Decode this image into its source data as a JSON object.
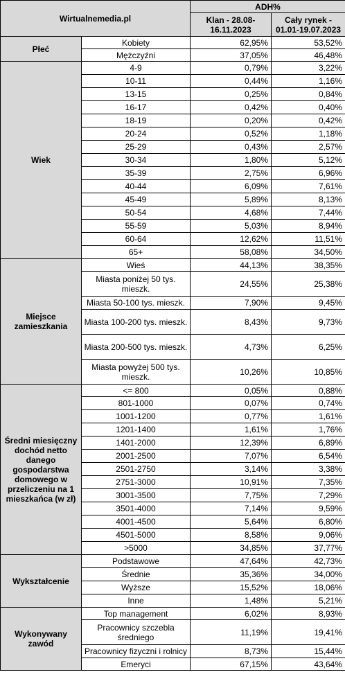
{
  "header": {
    "brand": "Wirtualnemedia.pl",
    "metric": "ADH%",
    "col1": "Klan - 28.08-16.11.2023",
    "col2": "Cały rynek - 01.01-19.07.2023"
  },
  "groups": [
    {
      "category": "Płeć",
      "rows": [
        {
          "label": "Kobiety",
          "v1": "62,95%",
          "v2": "53,52%"
        },
        {
          "label": "Mężczyźni",
          "v1": "37,05%",
          "v2": "46,48%"
        }
      ]
    },
    {
      "category": "Wiek",
      "rows": [
        {
          "label": "4-9",
          "v1": "0,79%",
          "v2": "3,22%"
        },
        {
          "label": "10-11",
          "v1": "0,44%",
          "v2": "1,16%"
        },
        {
          "label": "13-15",
          "v1": "0,25%",
          "v2": "0,84%"
        },
        {
          "label": "16-17",
          "v1": "0,42%",
          "v2": "0,40%"
        },
        {
          "label": "18-19",
          "v1": "0,20%",
          "v2": "0,42%"
        },
        {
          "label": "20-24",
          "v1": "0,52%",
          "v2": "1,18%"
        },
        {
          "label": "25-29",
          "v1": "0,43%",
          "v2": "2,57%"
        },
        {
          "label": "30-34",
          "v1": "1,80%",
          "v2": "5,12%"
        },
        {
          "label": "35-39",
          "v1": "2,75%",
          "v2": "6,96%"
        },
        {
          "label": "40-44",
          "v1": "6,09%",
          "v2": "7,61%"
        },
        {
          "label": "45-49",
          "v1": "5,89%",
          "v2": "8,13%"
        },
        {
          "label": "50-54",
          "v1": "4,68%",
          "v2": "7,44%"
        },
        {
          "label": "55-59",
          "v1": "5,03%",
          "v2": "8,94%"
        },
        {
          "label": "60-64",
          "v1": "12,62%",
          "v2": "11,51%"
        },
        {
          "label": "65+",
          "v1": "58,08%",
          "v2": "34,50%"
        }
      ]
    },
    {
      "category": "Miejsce zamieszkania",
      "rows": [
        {
          "label": "Wieś",
          "v1": "44,13%",
          "v2": "38,35%"
        },
        {
          "label": "Miasta poniżej 50 tys. mieszk.",
          "v1": "24,55%",
          "v2": "25,38%"
        },
        {
          "label": "Miasta 50-100 tys. mieszk.",
          "v1": "7,90%",
          "v2": "9,45%"
        },
        {
          "label": "Miasta 100-200 tys. mieszk.",
          "v1": "8,43%",
          "v2": "9,73%"
        },
        {
          "label": "Miasta 200-500 tys. mieszk.",
          "v1": "4,73%",
          "v2": "6,25%"
        },
        {
          "label": "Miasta powyżej 500 tys. mieszk.",
          "v1": "10,26%",
          "v2": "10,85%"
        }
      ]
    },
    {
      "category": "Średni miesięczny dochód netto danego gospodarstwa domowego w przeliczeniu na 1 mieszkańca (w zł)",
      "rows": [
        {
          "label": "<= 800",
          "v1": "0,05%",
          "v2": "0,88%"
        },
        {
          "label": "801-1000",
          "v1": "0,07%",
          "v2": "0,74%"
        },
        {
          "label": "1001-1200",
          "v1": "0,77%",
          "v2": "1,61%"
        },
        {
          "label": "1201-1400",
          "v1": "1,61%",
          "v2": "1,76%"
        },
        {
          "label": "1401-2000",
          "v1": "12,39%",
          "v2": "6,89%"
        },
        {
          "label": "2001-2500",
          "v1": "7,07%",
          "v2": "6,54%"
        },
        {
          "label": "2501-2750",
          "v1": "3,14%",
          "v2": "3,38%"
        },
        {
          "label": "2751-3000",
          "v1": "10,91%",
          "v2": "7,35%"
        },
        {
          "label": "3001-3500",
          "v1": "7,75%",
          "v2": "7,29%"
        },
        {
          "label": "3501-4000",
          "v1": "7,14%",
          "v2": "9,59%"
        },
        {
          "label": "4001-4500",
          "v1": "5,64%",
          "v2": "6,80%"
        },
        {
          "label": "4501-5000",
          "v1": "8,58%",
          "v2": "9,06%"
        },
        {
          "label": ">5000",
          "v1": "34,85%",
          "v2": "37,77%"
        }
      ]
    },
    {
      "category": "Wykształcenie",
      "rows": [
        {
          "label": "Podstawowe",
          "v1": "47,64%",
          "v2": "42,73%"
        },
        {
          "label": "Średnie",
          "v1": "35,36%",
          "v2": "34,00%"
        },
        {
          "label": "Wyższe",
          "v1": "15,52%",
          "v2": "18,06%"
        },
        {
          "label": "Inne",
          "v1": "1,48%",
          "v2": "5,21%"
        }
      ]
    },
    {
      "category": "Wykonywany zawód",
      "rows": [
        {
          "label": "Top management",
          "v1": "6,02%",
          "v2": "8,93%"
        },
        {
          "label": "Pracownicy szczebla średniego",
          "v1": "11,19%",
          "v2": "19,41%"
        },
        {
          "label": "Pracownicy fizyczni i rolnicy",
          "v1": "8,73%",
          "v2": "15,44%"
        },
        {
          "label": "Emeryci",
          "v1": "67,15%",
          "v2": "43,64%"
        }
      ]
    }
  ]
}
